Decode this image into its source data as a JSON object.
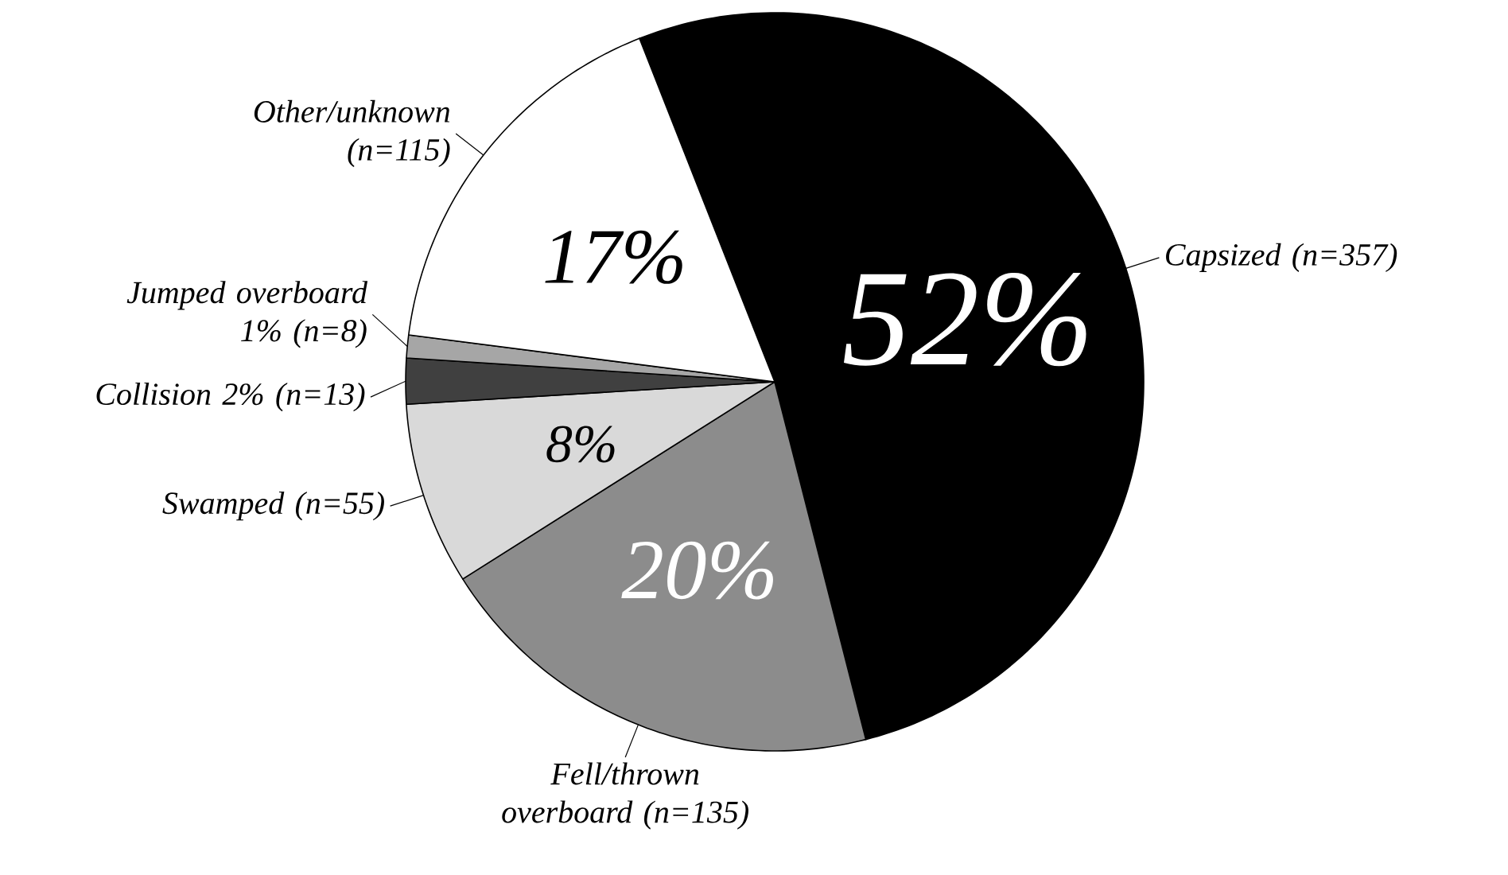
{
  "chart_data": {
    "type": "pie",
    "categories": [
      "Capsized (n=357)",
      "Fell/thrown overboard (n=135)",
      "Swamped (n=55)",
      "Collision 2% (n=13)",
      "Jumped overboard 1% (n=8)",
      "Other/unknown (n=115)"
    ],
    "values": [
      52,
      20,
      8,
      2,
      1,
      17
    ],
    "value_labels": [
      "52%",
      "20%",
      "8%",
      null,
      null,
      "17%"
    ],
    "colors": [
      "#000000",
      "#8c8c8c",
      "#d9d9d9",
      "#404040",
      "#a6a6a6",
      "#ffffff"
    ]
  }
}
